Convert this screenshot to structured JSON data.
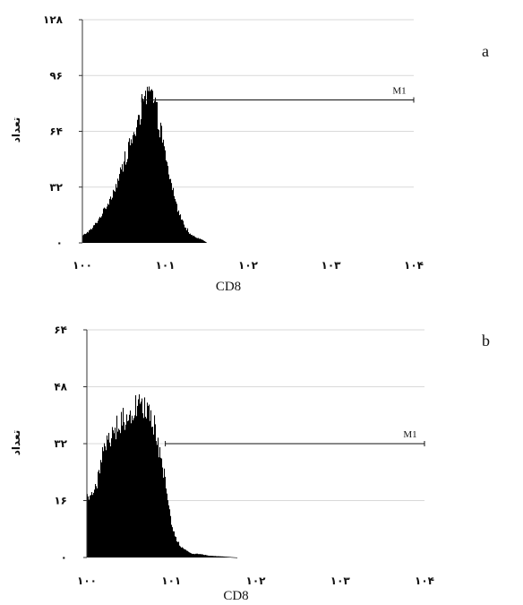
{
  "chart_data": [
    {
      "type": "histogram",
      "panel_label": "a",
      "xlabel": "CD8",
      "ylabel": "تعداد",
      "xscale": "log",
      "xlim": [
        1,
        10000
      ],
      "ylim": [
        0,
        128
      ],
      "yticks": [
        "۰",
        "۳۲",
        "۶۴",
        "۹۶",
        "۱۲۸"
      ],
      "ytick_values": [
        0,
        32,
        64,
        96,
        128
      ],
      "xticks": [
        "۱۰۰",
        "۱۰۱",
        "۱۰۲",
        "۱۰۳",
        "۱۰۴"
      ],
      "xtick_values": [
        1,
        10,
        100,
        1000,
        10000
      ],
      "grid": true,
      "marker": {
        "label": "M1",
        "x_start": 5.2,
        "x_end": 10000,
        "y": 82
      },
      "distribution": {
        "peak_x": 6.5,
        "peak_count": 90,
        "range_x": [
          1,
          32
        ]
      },
      "profile": [
        [
          1.0,
          4
        ],
        [
          1.3,
          8
        ],
        [
          1.6,
          14
        ],
        [
          2.0,
          22
        ],
        [
          2.5,
          32
        ],
        [
          3.0,
          42
        ],
        [
          3.5,
          52
        ],
        [
          4.0,
          60
        ],
        [
          4.5,
          66
        ],
        [
          5.0,
          70
        ],
        [
          5.5,
          78
        ],
        [
          6.0,
          84
        ],
        [
          6.5,
          86
        ],
        [
          7.0,
          84
        ],
        [
          8.0,
          74
        ],
        [
          9.0,
          62
        ],
        [
          10.0,
          50
        ],
        [
          11.0,
          40
        ],
        [
          12.5,
          30
        ],
        [
          14.0,
          20
        ],
        [
          16.0,
          13
        ],
        [
          18.0,
          8
        ],
        [
          20.0,
          5
        ],
        [
          24.0,
          3
        ],
        [
          28.0,
          2
        ],
        [
          32.0,
          0
        ]
      ]
    },
    {
      "type": "histogram",
      "panel_label": "b",
      "xlabel": "CD8",
      "ylabel": "تعداد",
      "xscale": "log",
      "xlim": [
        1,
        10000
      ],
      "ylim": [
        0,
        64
      ],
      "yticks": [
        "۰",
        "۱۶",
        "۳۲",
        "۴۸",
        "۶۴"
      ],
      "ytick_values": [
        0,
        16,
        32,
        48,
        64
      ],
      "xticks": [
        "۱۰۰",
        "۱۰۱",
        "۱۰۲",
        "۱۰۳",
        "۱۰۴"
      ],
      "xtick_values": [
        1,
        10,
        100,
        1000,
        10000
      ],
      "grid": true,
      "marker": {
        "label": "M1",
        "x_start": 8.5,
        "x_end": 10000,
        "y": 32
      },
      "distribution": {
        "peak_x": 4.2,
        "peak_count": 46,
        "range_x": [
          1,
          60
        ]
      },
      "profile": [
        [
          1.0,
          17
        ],
        [
          1.15,
          18
        ],
        [
          1.3,
          20
        ],
        [
          1.5,
          28
        ],
        [
          1.7,
          32
        ],
        [
          2.0,
          35
        ],
        [
          2.5,
          38
        ],
        [
          3.0,
          40
        ],
        [
          3.5,
          42
        ],
        [
          4.0,
          43
        ],
        [
          4.5,
          42
        ],
        [
          5.0,
          41
        ],
        [
          5.5,
          40
        ],
        [
          6.0,
          37
        ],
        [
          7.0,
          32
        ],
        [
          8.0,
          25
        ],
        [
          9.0,
          17
        ],
        [
          10.0,
          10
        ],
        [
          11.0,
          6
        ],
        [
          13.0,
          3
        ],
        [
          15.0,
          2
        ],
        [
          18.0,
          1
        ],
        [
          22.0,
          1
        ],
        [
          28.0,
          0.5
        ],
        [
          40.0,
          0.3
        ],
        [
          60.0,
          0
        ]
      ]
    }
  ]
}
